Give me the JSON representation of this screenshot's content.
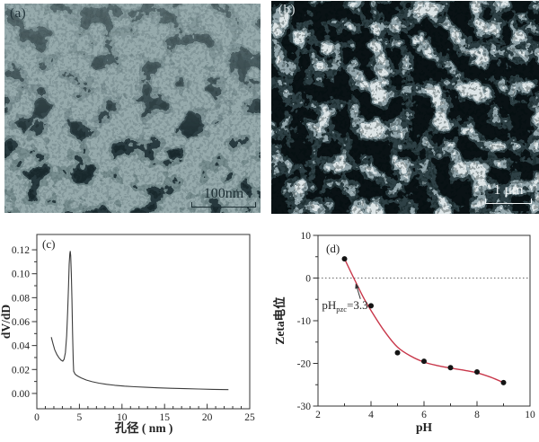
{
  "figure": {
    "panel_a": {
      "label": "(a)",
      "scale_bar_text": "100nm",
      "description": "TEM micrograph of aggregated nanoparticles",
      "bg_color": "#96aaac",
      "dark_color": "#27383d",
      "label_color": "#22343a"
    },
    "panel_b": {
      "label": "(b)",
      "scale_bar_text": "1 μm",
      "description": "SEM micrograph of porous network",
      "bg_color": "#0a1215",
      "light_color": "#bcc8cc",
      "label_color": "#d7dfe1"
    }
  },
  "chart_data": [
    {
      "panel_label": "(c)",
      "type": "line",
      "title": "",
      "xlabel": "孔径 ( nm )",
      "ylabel": "dV/dD",
      "xlim": [
        0,
        25
      ],
      "ylim": [
        -0.0128,
        0.1328
      ],
      "xticks": [
        0,
        5,
        10,
        15,
        20,
        25
      ],
      "xtick_labels": [
        "0",
        "5",
        "10",
        "15",
        "20",
        "25"
      ],
      "ytick_vals": [
        0,
        0.02,
        0.04,
        0.06,
        0.08,
        0.1,
        0.12
      ],
      "ytick_labels": [
        "0.00",
        "0.02",
        "0.04",
        "0.06",
        "0.08",
        "0.10",
        "0.12"
      ],
      "minor_x": 1,
      "minor_y": 0.01,
      "grid": false,
      "legend": null,
      "line_color": "#3c3c3c",
      "points": [
        [
          1.7,
          0.047
        ],
        [
          1.9,
          0.0415
        ],
        [
          2.1,
          0.0365
        ],
        [
          2.35,
          0.0325
        ],
        [
          2.6,
          0.0298
        ],
        [
          2.85,
          0.0278
        ],
        [
          3.05,
          0.027
        ],
        [
          3.2,
          0.0285
        ],
        [
          3.35,
          0.034
        ],
        [
          3.5,
          0.048
        ],
        [
          3.62,
          0.068
        ],
        [
          3.72,
          0.09
        ],
        [
          3.8,
          0.108
        ],
        [
          3.87,
          0.1165
        ],
        [
          3.92,
          0.119
        ],
        [
          3.98,
          0.115
        ],
        [
          4.05,
          0.1
        ],
        [
          4.12,
          0.078
        ],
        [
          4.2,
          0.05
        ],
        [
          4.27,
          0.028
        ],
        [
          4.32,
          0.0185
        ],
        [
          4.5,
          0.016
        ],
        [
          4.8,
          0.0145
        ],
        [
          5.2,
          0.013
        ],
        [
          5.8,
          0.0112
        ],
        [
          6.5,
          0.0098
        ],
        [
          7.3,
          0.0086
        ],
        [
          8.2,
          0.0076
        ],
        [
          9.2,
          0.0068
        ],
        [
          10.3,
          0.0061
        ],
        [
          11.5,
          0.0056
        ],
        [
          12.8,
          0.0051
        ],
        [
          14.2,
          0.0047
        ],
        [
          15.7,
          0.0043
        ],
        [
          17.3,
          0.004
        ],
        [
          19,
          0.0037
        ],
        [
          20.7,
          0.0034
        ],
        [
          22.5,
          0.0032
        ]
      ]
    },
    {
      "panel_label": "(d)",
      "type": "scatter",
      "title": "",
      "xlabel": "pH",
      "ylabel": "Zeta电位",
      "xlim": [
        2,
        10
      ],
      "ylim": [
        -30,
        10
      ],
      "xticks": [
        2,
        4,
        6,
        8,
        10
      ],
      "xtick_labels": [
        "2",
        "4",
        "6",
        "8",
        "10"
      ],
      "ytick_vals": [
        10,
        0,
        -10,
        -20,
        -30
      ],
      "ytick_labels": [
        "10",
        "0",
        "-10",
        "-20",
        "-30"
      ],
      "minor_x": 1,
      "minor_y": 5,
      "grid": false,
      "legend": null,
      "zero_line": true,
      "marker_color": "#141414",
      "curve_color": "#c8374a",
      "scatter": [
        [
          3,
          4.5
        ],
        [
          4,
          -6.5
        ],
        [
          5,
          -17.5
        ],
        [
          6,
          -19.5
        ],
        [
          7,
          -21
        ],
        [
          8,
          -22
        ],
        [
          9,
          -24.5
        ]
      ],
      "fit_curve": [
        [
          3,
          4.5
        ],
        [
          3.35,
          0
        ],
        [
          3.7,
          -4.4
        ],
        [
          4,
          -7.6
        ],
        [
          4.5,
          -12.4
        ],
        [
          5,
          -16.2
        ],
        [
          5.5,
          -18.3
        ],
        [
          6,
          -19.7
        ],
        [
          6.5,
          -20.5
        ],
        [
          7,
          -21.1
        ],
        [
          7.5,
          -21.6
        ],
        [
          8,
          -22.2
        ],
        [
          8.5,
          -23.2
        ],
        [
          9,
          -24.5
        ]
      ],
      "annotation": {
        "text_main": "pH",
        "text_sub": "pzc",
        "text_tail": "=3.3",
        "text_pos": [
          2.15,
          -7.3
        ],
        "arrow_from": [
          3.6,
          -4.9
        ],
        "arrow_to": [
          3.42,
          -1.2
        ]
      }
    }
  ]
}
